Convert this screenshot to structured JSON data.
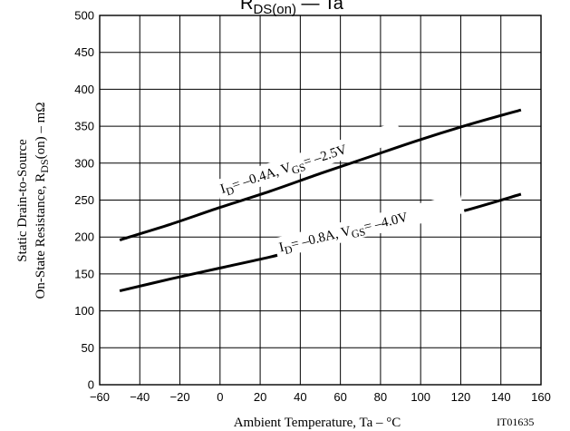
{
  "chart_data": {
    "type": "line",
    "title": "RDS(on) — Ta",
    "title_parts": {
      "main": "R",
      "sub": "DS(on)",
      "rest": " — Ta"
    },
    "xlabel": "Ambient Temperature, Ta  –  °C",
    "ylabel_line1": "Static Drain-to-Source",
    "ylabel_line2": "On-State Resistance, RDS(on)  –  mΩ",
    "xlim": [
      -60,
      160
    ],
    "ylim": [
      0,
      500
    ],
    "x_ticks": [
      -60,
      -40,
      -20,
      0,
      20,
      40,
      60,
      80,
      100,
      120,
      140,
      160
    ],
    "y_ticks": [
      0,
      50,
      100,
      150,
      200,
      250,
      300,
      350,
      400,
      450,
      500
    ],
    "grid": true,
    "code": "IT01635",
    "series": [
      {
        "name": "ID= –0.4A, VGS= –2.5V",
        "x": [
          -50,
          -25,
          0,
          25,
          50,
          75,
          100,
          125,
          150
        ],
        "values": [
          196,
          217,
          240,
          262,
          286,
          309,
          332,
          353,
          372
        ]
      },
      {
        "name": "ID= –0.8A, VGS= –4.0V",
        "x": [
          -50,
          -25,
          0,
          25,
          50,
          75,
          100,
          125,
          150
        ],
        "values": [
          127,
          143,
          158,
          173,
          190,
          205,
          221,
          238,
          258
        ]
      }
    ],
    "curve_labels": [
      {
        "I": "I",
        "Isub": "D",
        "mid": "= –0.4A, V",
        "Vsub": "GS",
        "end": "= –2.5V"
      },
      {
        "I": "I",
        "Isub": "D",
        "mid": "= –0.8A, V",
        "Vsub": "GS",
        "end": "= –4.0V"
      }
    ]
  }
}
